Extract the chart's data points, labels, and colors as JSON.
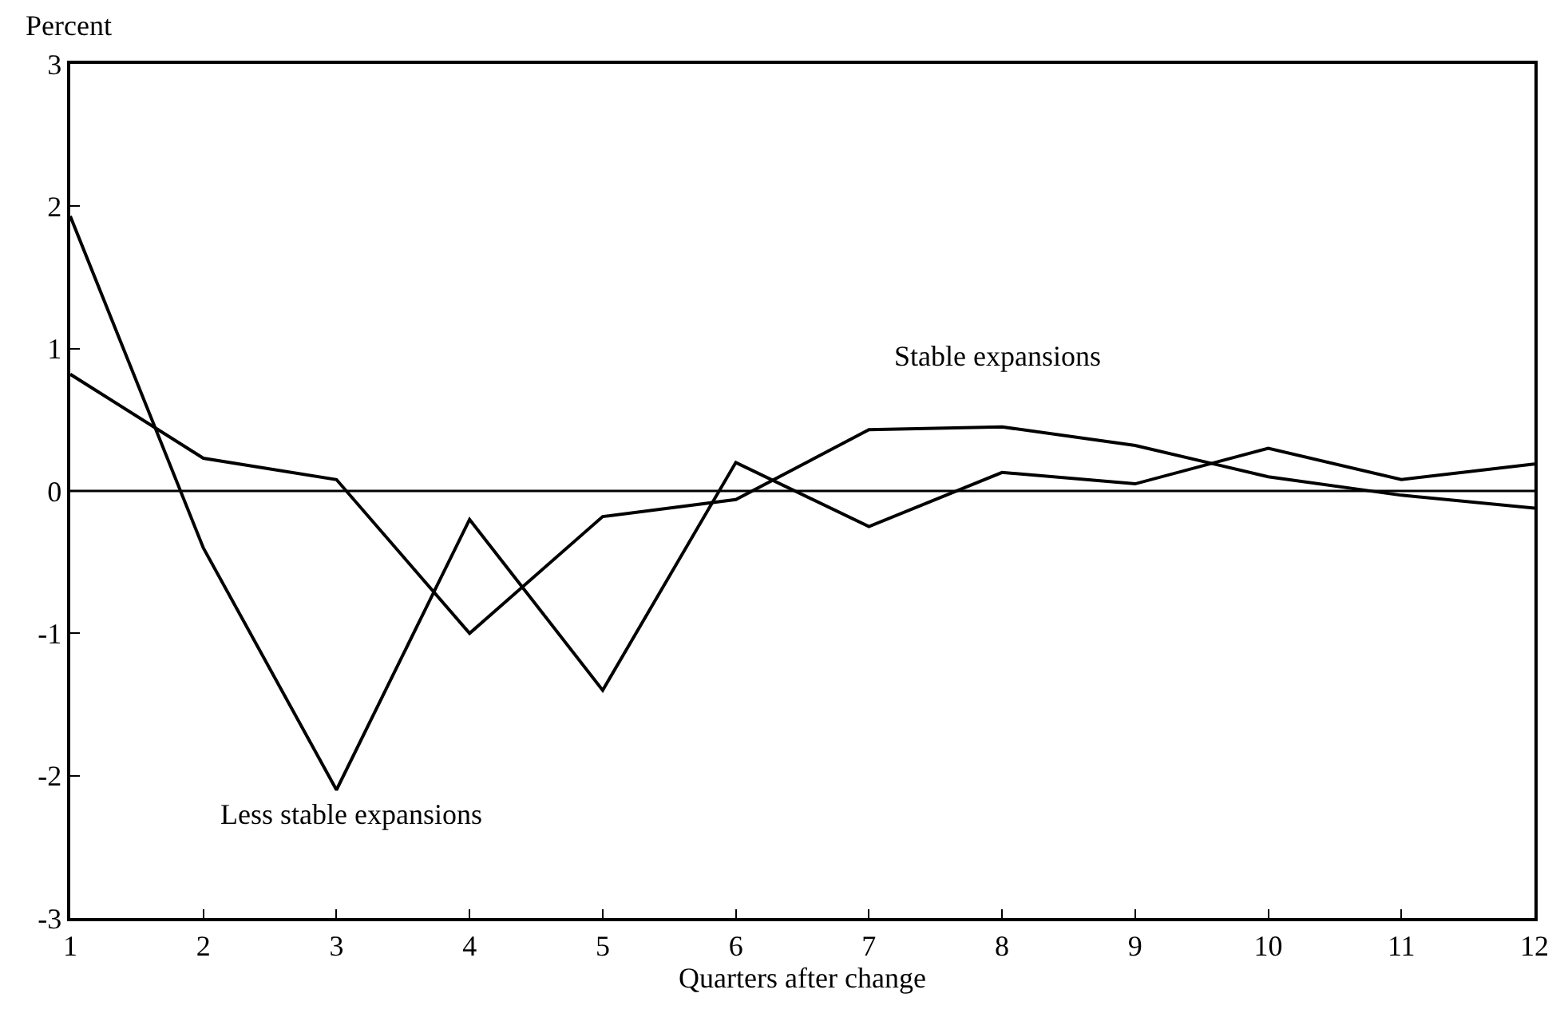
{
  "chart_data": {
    "type": "line",
    "xlabel": "Quarters after change",
    "ylabel": "Percent",
    "x": [
      1,
      2,
      3,
      4,
      5,
      6,
      7,
      8,
      9,
      10,
      11,
      12
    ],
    "series": [
      {
        "name": "Stable expansions",
        "color": "#000000",
        "values": [
          0.82,
          0.23,
          0.08,
          -1.0,
          -0.18,
          -0.06,
          0.43,
          0.45,
          0.32,
          0.1,
          -0.03,
          -0.12
        ]
      },
      {
        "name": "Less stable expansions",
        "color": "#000000",
        "values": [
          1.93,
          -0.4,
          -2.1,
          -0.2,
          -1.4,
          0.2,
          -0.25,
          0.13,
          0.05,
          0.3,
          0.08,
          0.19
        ]
      }
    ],
    "xlim": [
      1,
      12
    ],
    "xticks": [
      1,
      2,
      3,
      4,
      5,
      6,
      7,
      8,
      9,
      10,
      11,
      12
    ],
    "ylim": [
      -3,
      3
    ],
    "yticks": [
      -3,
      -2,
      -1,
      0,
      1,
      2,
      3
    ],
    "ref_lines": [
      {
        "axis": "y",
        "value": 0,
        "color": "#000000"
      }
    ],
    "legend": false,
    "marker": "none",
    "line_style": "solid"
  }
}
